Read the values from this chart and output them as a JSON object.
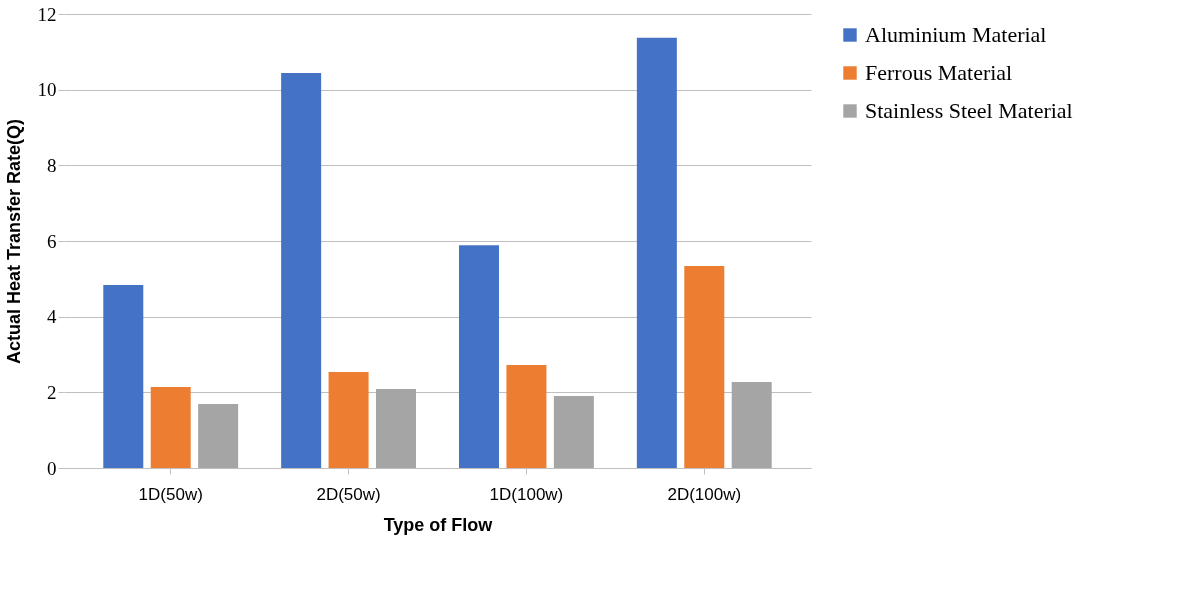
{
  "chart_data": {
    "type": "bar",
    "xlabel": "Type of Flow",
    "ylabel": "Actual Heat Transfer Rate(Q)",
    "categories": [
      "1D(50w)",
      "2D(50w)",
      "1D(100w)",
      "2D(100w)"
    ],
    "series": [
      {
        "name": "Aluminium Material",
        "color": "#4472c4",
        "values": [
          4.84,
          10.44,
          5.89,
          11.37
        ]
      },
      {
        "name": "Ferrous Material",
        "color": "#ed7d31",
        "values": [
          2.14,
          2.54,
          2.72,
          5.34
        ]
      },
      {
        "name": "Stainless Steel Material",
        "color": "#a5a5a5",
        "values": [
          1.69,
          2.09,
          1.9,
          2.27
        ]
      }
    ],
    "ylim": [
      0,
      12
    ],
    "yticks": [
      0,
      2,
      4,
      6,
      8,
      10,
      12
    ],
    "grid": "y",
    "legend": "right"
  }
}
